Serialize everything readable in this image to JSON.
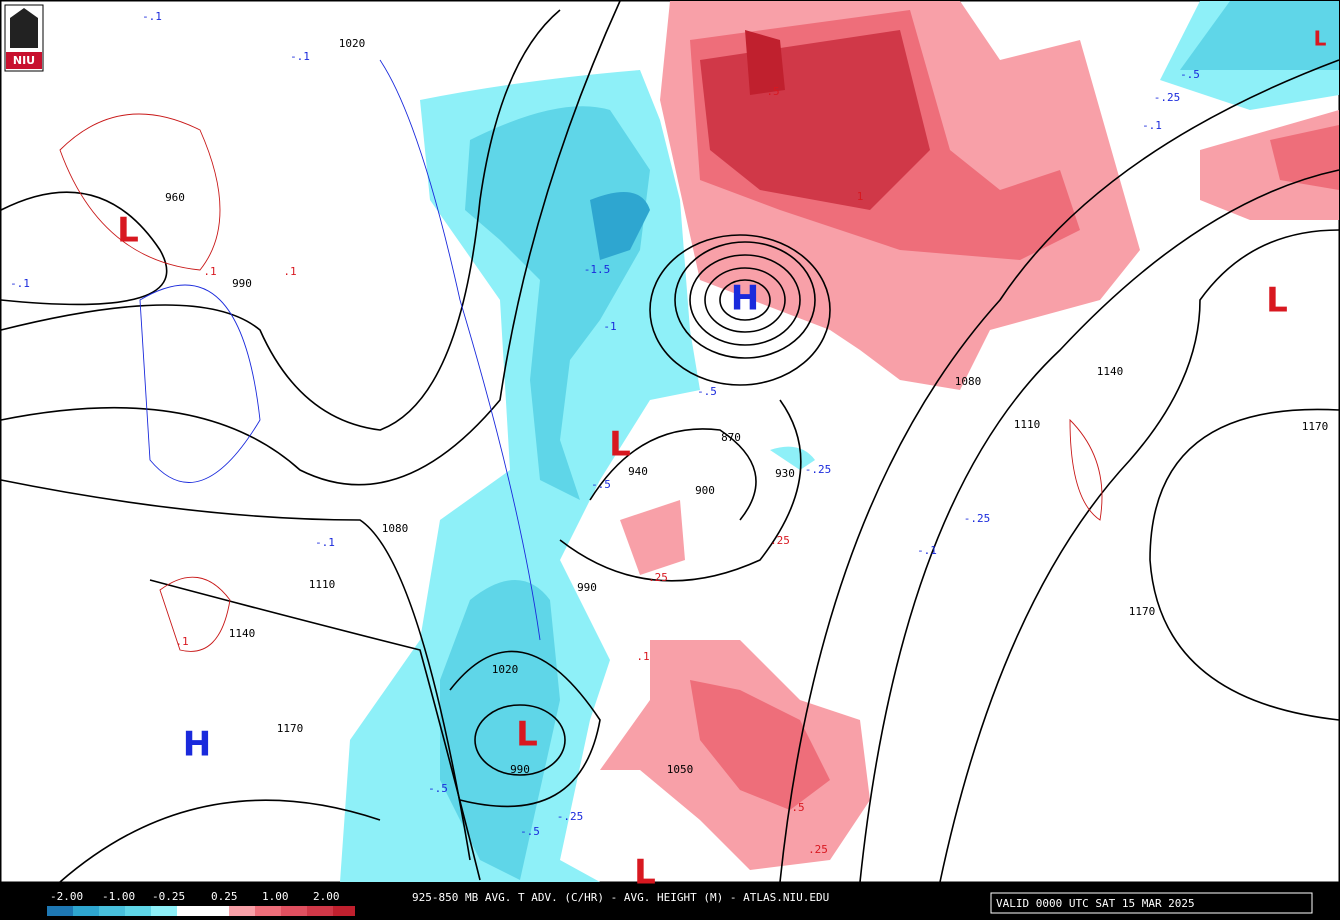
{
  "logo": "NIU",
  "colorbar": {
    "labels": [
      "-2.00",
      "-1.00",
      "-0.25",
      "0.25",
      "1.00",
      "2.00"
    ]
  },
  "footer": {
    "title": "925-850 MB AVG. T ADV. (C/HR) - AVG. HEIGHT (M) - ATLAS.NIU.EDU",
    "valid": "VALID 0000 UTC SAT 15 MAR 2025"
  },
  "centers": [
    "L",
    "L",
    "H",
    "L",
    "L",
    "H",
    "L",
    "L"
  ],
  "height_labels": [
    "1020",
    "960",
    "990",
    "1080",
    "1110",
    "1140",
    "1170",
    "870",
    "900",
    "930",
    "940",
    "990",
    "1020",
    "990",
    "1050",
    "1080",
    "1110",
    "1140",
    "1170",
    "1170"
  ],
  "advection_labels": [
    "-.1",
    "-.1",
    ".1",
    ".1",
    "-.1",
    "-1.5",
    "-1",
    "-.5",
    "-.5",
    ".5",
    "1",
    "-.25",
    ".25",
    ".25",
    "-.25",
    "-.5",
    "-.25",
    "-.5",
    ".5",
    ".25",
    "-.1",
    "-.25",
    "-.5",
    ".1",
    "-.1",
    ".1",
    "-.1"
  ]
}
